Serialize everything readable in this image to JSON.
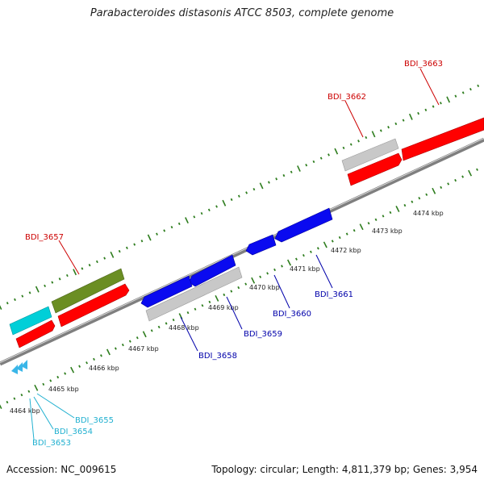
{
  "title": "Parabacteroides distasonis ATCC 8503, complete genome",
  "accession": "Accession: NC_009615",
  "summary": "Topology: circular; Length: 4,811,379 bp; Genes: 3,954",
  "colors": {
    "backbone": "#808080",
    "tick": "#2e7d1e",
    "forward_gene": "#ff0000",
    "reverse_gene": "#0000ee",
    "rna_gene": "#00c0d0",
    "pseudo_gene": "#c0c0c0",
    "other_gene": "#6b8e23",
    "label_forward": "#cc0000",
    "label_reverse": "#0000aa",
    "label_rna": "#20b0d0"
  },
  "scale_labels": [
    "4464 kbp",
    "4465 kbp",
    "4466 kbp",
    "4467 kbp",
    "4468 kbp",
    "4469 kbp",
    "4470 kbp",
    "4471 kbp",
    "4472 kbp",
    "4473 kbp",
    "4474 kbp"
  ],
  "gene_labels": {
    "bdi_3663": "BDI_3663",
    "bdi_3662": "BDI_3662",
    "bdi_3657": "BDI_3657",
    "bdi_3661": "BDI_3661",
    "bdi_3660": "BDI_3660",
    "bdi_3659": "BDI_3659",
    "bdi_3658": "BDI_3658",
    "bdi_3655": "BDI_3655",
    "bdi_3654": "BDI_3654",
    "bdi_3653": "BDI_3653"
  }
}
